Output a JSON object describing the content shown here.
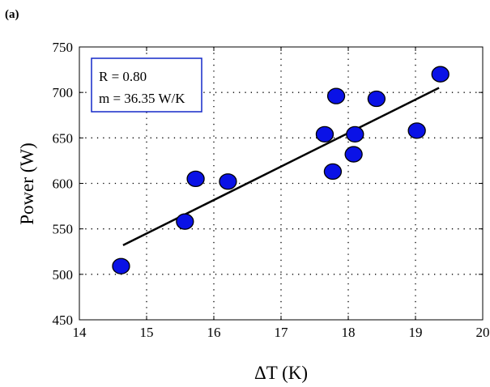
{
  "panel_label": "(a)",
  "chart_data": {
    "type": "scatter",
    "title": "",
    "xlabel": "ΔT (K)",
    "ylabel": "Power (W)",
    "xlim": [
      14,
      20
    ],
    "ylim": [
      450,
      750
    ],
    "xticks": [
      14,
      15,
      16,
      17,
      18,
      19,
      20
    ],
    "yticks": [
      450,
      500,
      550,
      600,
      650,
      700,
      750
    ],
    "grid": true,
    "series": [
      {
        "points": [
          {
            "x": 14.62,
            "y": 509
          },
          {
            "x": 15.57,
            "y": 558
          },
          {
            "x": 15.73,
            "y": 605
          },
          {
            "x": 16.21,
            "y": 602
          },
          {
            "x": 17.65,
            "y": 654
          },
          {
            "x": 17.77,
            "y": 613
          },
          {
            "x": 17.82,
            "y": 696
          },
          {
            "x": 18.08,
            "y": 632
          },
          {
            "x": 18.1,
            "y": 654
          },
          {
            "x": 18.42,
            "y": 693
          },
          {
            "x": 19.02,
            "y": 658
          },
          {
            "x": 19.37,
            "y": 720
          }
        ]
      }
    ],
    "fit_line": {
      "x": [
        14.65,
        19.35
      ],
      "y": [
        532,
        705
      ]
    },
    "annotations": [
      "R = 0.80",
      "m = 36.35 W/K"
    ],
    "colors": {
      "marker_fill": "#0a12e6",
      "marker_edge": "#000000",
      "fit_line": "#000000",
      "annotation_border": "#1428c8",
      "grid": "#000000"
    }
  }
}
